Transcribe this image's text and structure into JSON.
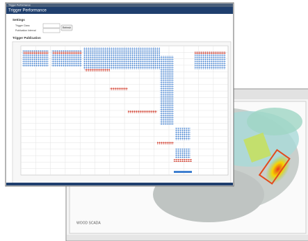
{
  "front_window": {
    "app_name": "Trigger Performance",
    "title": "Trigger Performance",
    "settings_heading": "Settings",
    "fields": [
      {
        "label": "Trigger Class"
      },
      {
        "label": "Publication Interval"
      }
    ],
    "refresh_button": "Refresh",
    "plot_heading": "Trigger Publication"
  },
  "back_window": {
    "caption": "WOOD SCADA"
  }
}
